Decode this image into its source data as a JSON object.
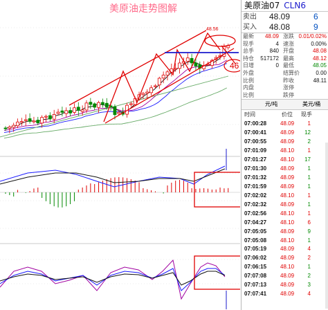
{
  "chart_title": "美原油走势图解",
  "annotations": {
    "peak_price": "48.56",
    "arrow_number": "46"
  },
  "quote": {
    "name": "美原油07",
    "code": "CLN6",
    "sell_label": "卖出",
    "sell_price": "48.09",
    "sell_vol": "6",
    "buy_label": "买入",
    "buy_price": "48.08",
    "buy_vol": "9"
  },
  "stats": [
    {
      "l1": "最新",
      "v1": "48.09",
      "c1": "red",
      "l2": "涨跌",
      "v2": "0.01/0.02%",
      "c2": "red"
    },
    {
      "l1": "现手",
      "v1": "4",
      "c1": "blk",
      "l2": "速涨",
      "v2": "0.00%",
      "c2": "blk"
    },
    {
      "l1": "总手",
      "v1": "840",
      "c1": "blk",
      "l2": "开盘",
      "v2": "48.08",
      "c2": "red"
    },
    {
      "l1": "持仓",
      "v1": "517172",
      "c1": "blk",
      "l2": "最高",
      "v2": "48.12",
      "c2": "red"
    },
    {
      "l1": "日增",
      "v1": "0",
      "c1": "blk",
      "l2": "最低",
      "v2": "48.05",
      "c2": "green"
    },
    {
      "l1": "外盘",
      "v1": "",
      "c1": "blk",
      "l2": "结算价",
      "v2": "0.00",
      "c2": "blk"
    },
    {
      "l1": "比例",
      "v1": "",
      "c1": "blk",
      "l2": "昨收",
      "v2": "48.11",
      "c2": "blk"
    },
    {
      "l1": "内盘",
      "v1": "",
      "c1": "blk",
      "l2": "涨停",
      "v2": "",
      "c2": "blk"
    },
    {
      "l1": "比例",
      "v1": "",
      "c1": "blk",
      "l2": "跌停",
      "v2": "",
      "c2": "blk"
    }
  ],
  "tabbar": {
    "left": "元/吨",
    "right": "美元/桶"
  },
  "ticks_header": {
    "time": "时间",
    "price": "价位",
    "vol": "现手"
  },
  "ticks": [
    {
      "time": "07:00:28",
      "price": "48.09",
      "vol": "1",
      "dir": "red"
    },
    {
      "time": "07:00:41",
      "price": "48.09",
      "vol": "12",
      "dir": "green"
    },
    {
      "time": "07:00:55",
      "price": "48.09",
      "vol": "2",
      "dir": "green"
    },
    {
      "time": "07:01:09",
      "price": "48.10",
      "vol": "1",
      "dir": "red"
    },
    {
      "time": "07:01:27",
      "price": "48.10",
      "vol": "17",
      "dir": "green"
    },
    {
      "time": "07:01:30",
      "price": "48.09",
      "vol": "1",
      "dir": "green"
    },
    {
      "time": "07:01:32",
      "price": "48.09",
      "vol": "1",
      "dir": "green"
    },
    {
      "time": "07:01:59",
      "price": "48.09",
      "vol": "1",
      "dir": "green"
    },
    {
      "time": "07:02:02",
      "price": "48.10",
      "vol": "1",
      "dir": "red"
    },
    {
      "time": "07:02:32",
      "price": "48.09",
      "vol": "1",
      "dir": "green"
    },
    {
      "time": "07:02:56",
      "price": "48.10",
      "vol": "1",
      "dir": "red"
    },
    {
      "time": "07:04:27",
      "price": "48.10",
      "vol": "6",
      "dir": "red"
    },
    {
      "time": "07:05:05",
      "price": "48.09",
      "vol": "9",
      "dir": "green"
    },
    {
      "time": "07:05:08",
      "price": "48.10",
      "vol": "1",
      "dir": "green"
    },
    {
      "time": "07:05:19",
      "price": "48.09",
      "vol": "4",
      "dir": "red"
    },
    {
      "time": "07:06:02",
      "price": "48.09",
      "vol": "2",
      "dir": "red"
    },
    {
      "time": "07:06:15",
      "price": "48.10",
      "vol": "1",
      "dir": "green"
    },
    {
      "time": "07:07:08",
      "price": "48.09",
      "vol": "2",
      "dir": "green"
    },
    {
      "time": "07:07:13",
      "price": "48.09",
      "vol": "3",
      "dir": "green"
    },
    {
      "time": "07:07:41",
      "price": "48.09",
      "vol": "4",
      "dir": "red"
    }
  ],
  "colors": {
    "up": "#e00000",
    "down": "#008800",
    "accent": "#e00000",
    "ma1": "#1a1aff",
    "ma2": "#111111",
    "ma3": "#a000a0",
    "ma4": "#00a000"
  }
}
